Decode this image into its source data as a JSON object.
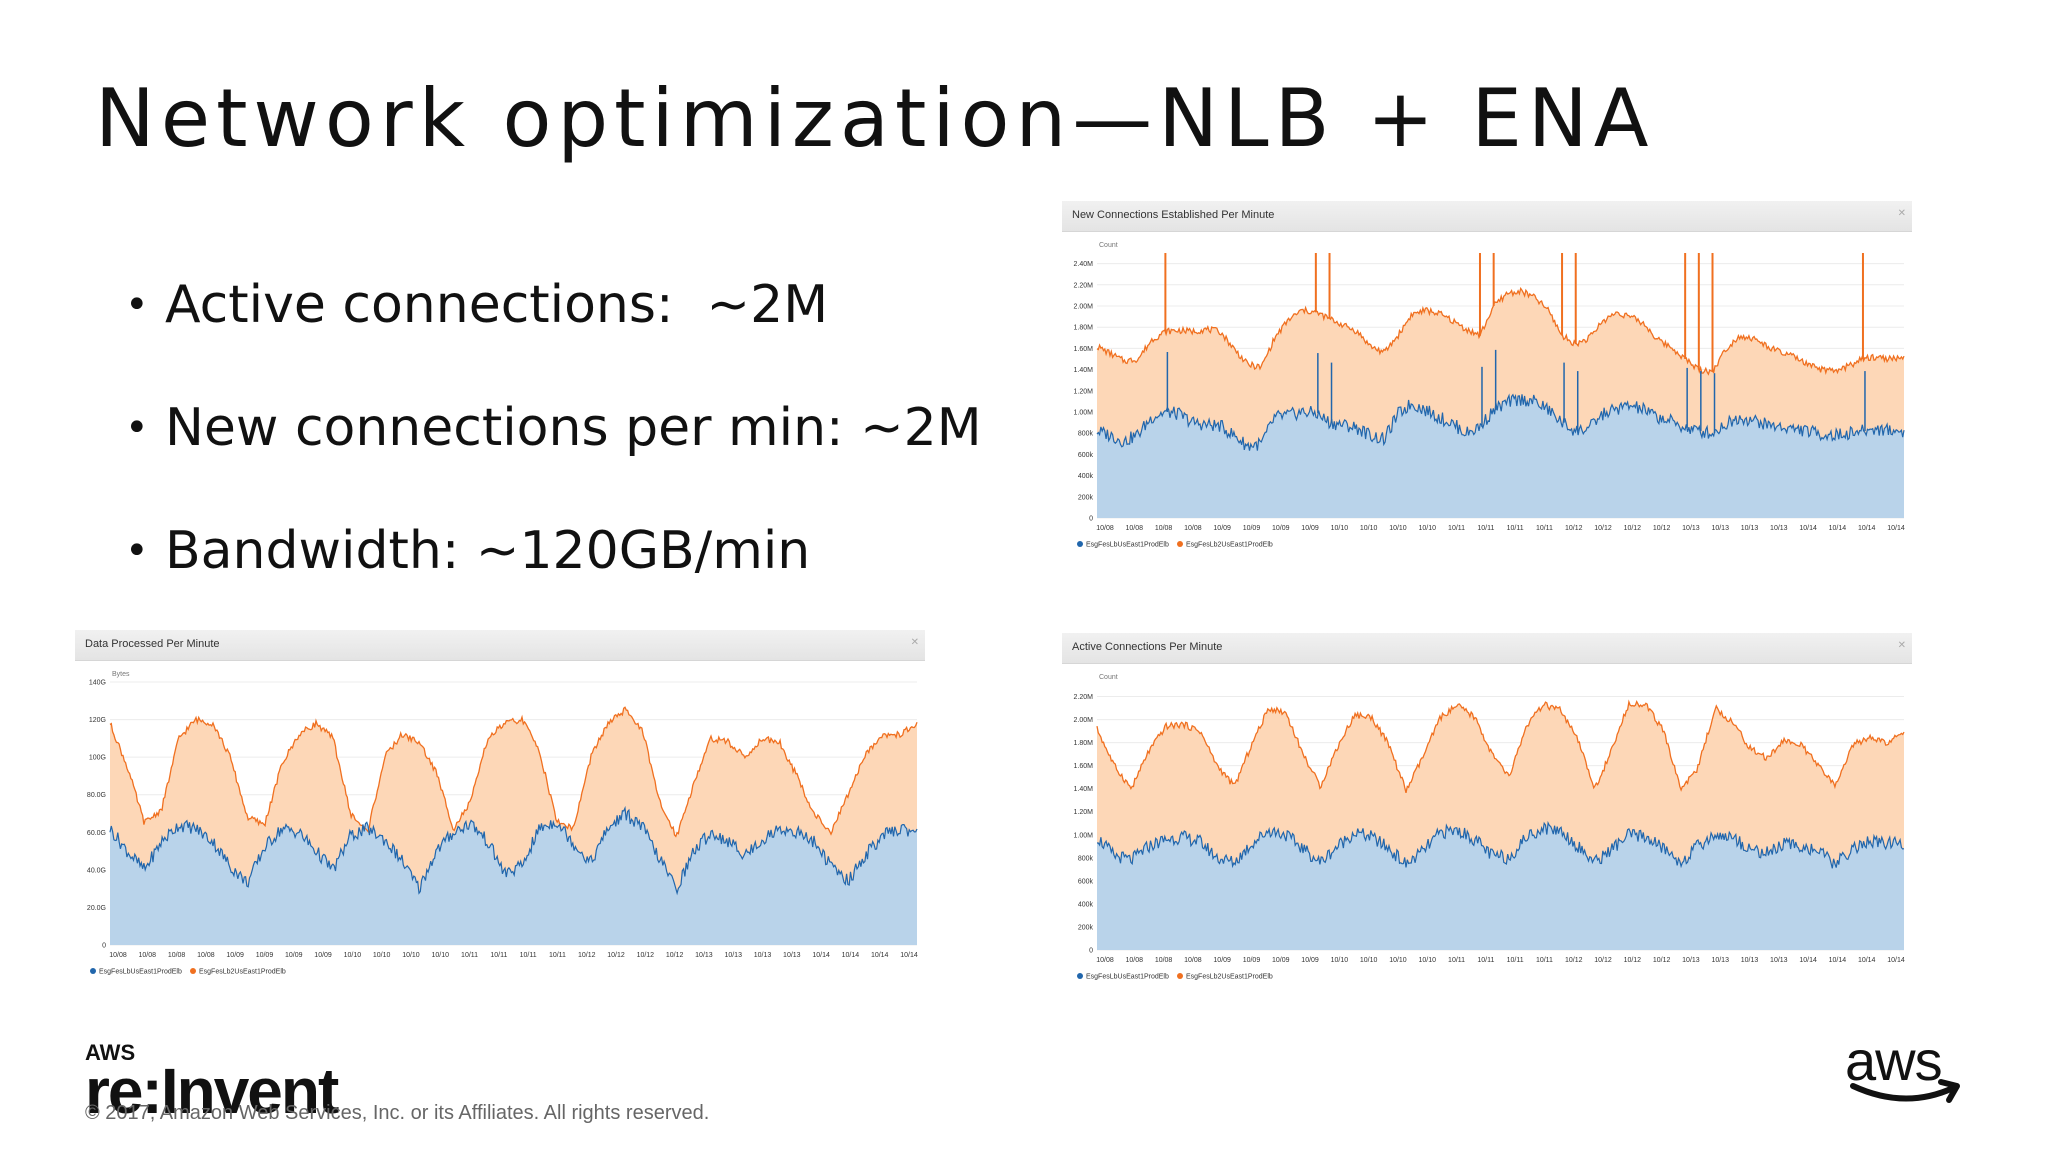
{
  "slide": {
    "title": "Network optimization—NLB + ENA",
    "bullets": [
      "Active connections:  ~2M",
      "New connections per min: ~2M",
      "Bandwidth: ~120GB/min"
    ],
    "footer": {
      "brand_small": "AWS",
      "brand_large": "re:Invent",
      "copyright": "© 2017, Amazon Web Services, Inc. or its Affiliates. All rights reserved.",
      "aws_logo_text": "aws"
    }
  },
  "colors": {
    "blue_line": "#2166ac",
    "blue_fill": "#b9d3ea",
    "orange_line": "#f07020",
    "orange_fill": "#fdd7b7"
  },
  "chart_data": [
    {
      "id": "new-connections",
      "type": "area",
      "title": "New Connections Established Per Minute",
      "ylabel": "Count",
      "yticks": [
        "2.40M",
        "2.20M",
        "2.00M",
        "1.80M",
        "1.60M",
        "1.40M",
        "1.20M",
        "1.00M",
        "800k",
        "600k",
        "400k",
        "200k",
        "0"
      ],
      "ylim": [
        0,
        2500000
      ],
      "xticks": [
        "10/08",
        "10/08",
        "10/08",
        "10/08",
        "10/09",
        "10/09",
        "10/09",
        "10/09",
        "10/10",
        "10/10",
        "10/10",
        "10/10",
        "10/11",
        "10/11",
        "10/11",
        "10/11",
        "10/12",
        "10/12",
        "10/12",
        "10/12",
        "10/13",
        "10/13",
        "10/13",
        "10/13",
        "10/14",
        "10/14",
        "10/14",
        "10/14"
      ],
      "legend": [
        "EsgFesLbUsEast1ProdElb",
        "EsgFesLb2UsEast1ProdElb"
      ],
      "legend_position": "bottom-left",
      "grid": true,
      "series": [
        {
          "name": "EsgFesLbUsEast1ProdElb",
          "values": [
            820000,
            780000,
            720000,
            790000,
            950000,
            1000000,
            980000,
            900000,
            880000,
            870000,
            780000,
            680000,
            700000,
            950000,
            970000,
            1000000,
            990000,
            900000,
            880000,
            850000,
            780000,
            740000,
            980000,
            1080000,
            1020000,
            950000,
            890000,
            800000,
            860000,
            1020000,
            1090000,
            1120000,
            1100000,
            1020000,
            900000,
            820000,
            850000,
            980000,
            1030000,
            1060000,
            1020000,
            950000,
            910000,
            850000,
            820000,
            800000,
            890000,
            950000,
            920000,
            880000,
            860000,
            840000,
            820000,
            790000,
            780000,
            800000,
            820000,
            840000,
            830000,
            810000
          ]
        },
        {
          "name": "EsgFesLb2UsEast1ProdElb",
          "values": [
            1620000,
            1550000,
            1480000,
            1500000,
            1680000,
            1760000,
            1770000,
            1760000,
            1780000,
            1760000,
            1600000,
            1450000,
            1420000,
            1700000,
            1870000,
            1960000,
            1940000,
            1880000,
            1820000,
            1760000,
            1620000,
            1560000,
            1720000,
            1920000,
            1960000,
            1930000,
            1860000,
            1780000,
            1720000,
            2000000,
            2120000,
            2140000,
            2080000,
            1960000,
            1720000,
            1640000,
            1700000,
            1860000,
            1940000,
            1900000,
            1830000,
            1680000,
            1610000,
            1500000,
            1400000,
            1380000,
            1600000,
            1720000,
            1690000,
            1620000,
            1560000,
            1520000,
            1440000,
            1400000,
            1380000,
            1440000,
            1500000,
            1520000,
            1500000,
            1520000
          ]
        }
      ],
      "spike_indices": [
        5,
        16,
        17,
        28,
        29,
        34,
        35,
        43,
        44,
        45,
        56
      ]
    },
    {
      "id": "data-processed",
      "type": "area",
      "title": "Data Processed Per Minute",
      "ylabel": "Bytes",
      "yticks": [
        "140G",
        "120G",
        "100G",
        "80.0G",
        "60.0G",
        "40.0G",
        "20.0G",
        "0"
      ],
      "ylim": [
        0,
        140
      ],
      "xticks": [
        "10/08",
        "10/08",
        "10/08",
        "10/08",
        "10/09",
        "10/09",
        "10/09",
        "10/09",
        "10/10",
        "10/10",
        "10/10",
        "10/10",
        "10/11",
        "10/11",
        "10/11",
        "10/11",
        "10/12",
        "10/12",
        "10/12",
        "10/12",
        "10/13",
        "10/13",
        "10/13",
        "10/13",
        "10/14",
        "10/14",
        "10/14",
        "10/14"
      ],
      "legend": [
        "EsgFesLbUsEast1ProdElb",
        "EsgFesLb2UsEast1ProdElb"
      ],
      "legend_position": "bottom-left",
      "grid": true,
      "series": [
        {
          "name": "EsgFesLbUsEast1ProdElb",
          "values": [
            62,
            50,
            40,
            55,
            64,
            62,
            55,
            42,
            33,
            52,
            62,
            60,
            50,
            40,
            58,
            62,
            56,
            45,
            30,
            50,
            60,
            65,
            55,
            38,
            42,
            62,
            66,
            54,
            44,
            62,
            70,
            63,
            46,
            30,
            50,
            60,
            55,
            48,
            56,
            62,
            60,
            55,
            42,
            34,
            48,
            58,
            62,
            60
          ]
        },
        {
          "name": "EsgFesLb2UsEast1ProdElb",
          "values": [
            118,
            95,
            65,
            72,
            110,
            120,
            118,
            100,
            68,
            64,
            96,
            112,
            118,
            110,
            70,
            60,
            100,
            112,
            108,
            92,
            62,
            76,
            110,
            118,
            120,
            104,
            66,
            62,
            100,
            118,
            125,
            115,
            76,
            58,
            86,
            110,
            108,
            100,
            110,
            108,
            90,
            70,
            60,
            80,
            102,
            112,
            112,
            118
          ]
        }
      ]
    },
    {
      "id": "active-connections",
      "type": "area",
      "title": "Active Connections Per Minute",
      "ylabel": "Count",
      "yticks": [
        "2.20M",
        "2.00M",
        "1.80M",
        "1.60M",
        "1.40M",
        "1.20M",
        "1.00M",
        "800k",
        "600k",
        "400k",
        "200k",
        "0"
      ],
      "ylim": [
        0,
        2300000
      ],
      "xticks": [
        "10/08",
        "10/08",
        "10/08",
        "10/08",
        "10/09",
        "10/09",
        "10/09",
        "10/09",
        "10/10",
        "10/10",
        "10/10",
        "10/10",
        "10/11",
        "10/11",
        "10/11",
        "10/11",
        "10/12",
        "10/12",
        "10/12",
        "10/12",
        "10/13",
        "10/13",
        "10/13",
        "10/13",
        "10/14",
        "10/14",
        "10/14",
        "10/14"
      ],
      "legend": [
        "EsgFesLbUsEast1ProdElb",
        "EsgFesLb2UsEast1ProdElb"
      ],
      "legend_position": "bottom-left",
      "grid": true,
      "series": [
        {
          "name": "EsgFesLbUsEast1ProdElb",
          "values": [
            980000,
            820000,
            780000,
            900000,
            960000,
            980000,
            940000,
            800000,
            760000,
            920000,
            1040000,
            1000000,
            880000,
            760000,
            900000,
            1020000,
            980000,
            880000,
            740000,
            860000,
            1020000,
            1040000,
            960000,
            820000,
            800000,
            980000,
            1060000,
            1040000,
            900000,
            760000,
            880000,
            1000000,
            980000,
            880000,
            760000,
            900000,
            1000000,
            980000,
            880000,
            840000,
            920000,
            900000,
            860000,
            740000,
            880000,
            940000,
            920000,
            930000
          ]
        },
        {
          "name": "EsgFesLb2UsEast1ProdElb",
          "values": [
            1920000,
            1600000,
            1400000,
            1720000,
            1940000,
            1960000,
            1900000,
            1600000,
            1420000,
            1780000,
            2100000,
            2060000,
            1700000,
            1420000,
            1760000,
            2040000,
            2020000,
            1780000,
            1380000,
            1680000,
            2020000,
            2120000,
            2020000,
            1700000,
            1500000,
            1940000,
            2130000,
            2080000,
            1820000,
            1400000,
            1740000,
            2150000,
            2120000,
            1900000,
            1400000,
            1580000,
            2100000,
            1980000,
            1760000,
            1660000,
            1820000,
            1780000,
            1600000,
            1420000,
            1780000,
            1840000,
            1800000,
            1880000
          ]
        }
      ]
    }
  ]
}
